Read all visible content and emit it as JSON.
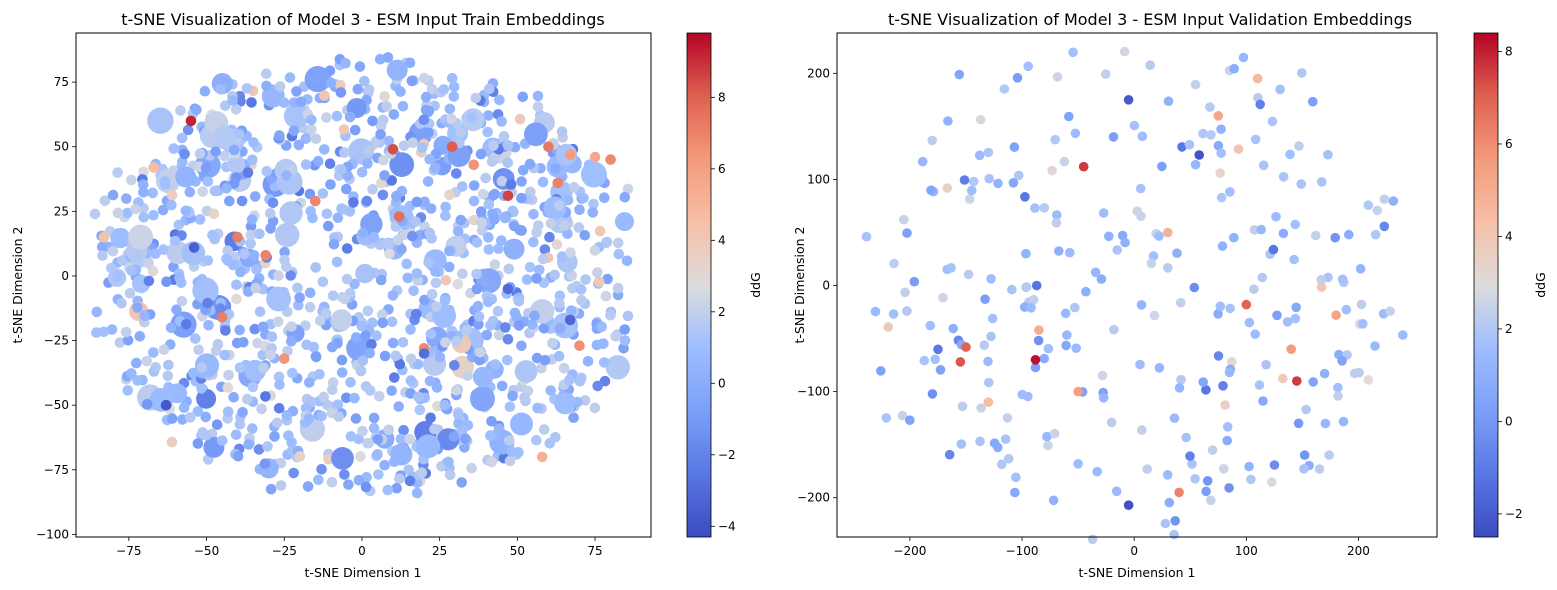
{
  "chart_data": [
    {
      "type": "scatter",
      "title": "t-SNE Visualization of Model 3 - ESM Input Train Embeddings",
      "xlabel": "t-SNE Dimension 1",
      "ylabel": "t-SNE Dimension 2",
      "xlim": [
        -92,
        93
      ],
      "ylim": [
        -101,
        94
      ],
      "xticks": [
        -75,
        -50,
        -25,
        0,
        25,
        50,
        75
      ],
      "yticks": [
        -100,
        -75,
        -50,
        -25,
        0,
        25,
        50,
        75
      ],
      "grid": false,
      "colorbar": {
        "label": "ddG",
        "range": [
          -4.3,
          9.8
        ],
        "ticks": [
          -4,
          -2,
          0,
          2,
          4,
          6,
          8
        ],
        "colormap": "coolwarm"
      },
      "highlight_points": [
        {
          "x": -55,
          "y": 60,
          "ddG": 9.2
        },
        {
          "x": 10,
          "y": 49,
          "ddG": 8.4
        },
        {
          "x": 12,
          "y": 23,
          "ddG": 7.6
        },
        {
          "x": 47,
          "y": 31,
          "ddG": 8.6
        },
        {
          "x": 29,
          "y": 50,
          "ddG": 8.1
        },
        {
          "x": 80,
          "y": 45,
          "ddG": 6.8
        },
        {
          "x": -40,
          "y": 15,
          "ddG": 7.2
        },
        {
          "x": -15,
          "y": 29,
          "ddG": 6.9
        },
        {
          "x": -31,
          "y": 8,
          "ddG": 7.0
        },
        {
          "x": 70,
          "y": -27,
          "ddG": 6.6
        },
        {
          "x": -25,
          "y": -32,
          "ddG": 6.4
        },
        {
          "x": 20,
          "y": -28,
          "ddG": 6.8
        },
        {
          "x": -45,
          "y": -16,
          "ddG": 7.1
        },
        {
          "x": 63,
          "y": 36,
          "ddG": 7.0
        },
        {
          "x": 36,
          "y": 43,
          "ddG": 6.5
        },
        {
          "x": 67,
          "y": 47,
          "ddG": 6.2
        },
        {
          "x": 75,
          "y": 46,
          "ddG": 5.6
        },
        {
          "x": 58,
          "y": -70,
          "ddG": 5.2
        },
        {
          "x": -83,
          "y": 15,
          "ddG": 4.4
        },
        {
          "x": -67,
          "y": 42,
          "ddG": 4.6
        },
        {
          "x": 60,
          "y": 50,
          "ddG": 7.3
        },
        {
          "x": -54,
          "y": 11,
          "ddG": -3.5
        },
        {
          "x": -63,
          "y": -50,
          "ddG": -3.8
        },
        {
          "x": 67,
          "y": -17,
          "ddG": -3.2
        },
        {
          "x": 20,
          "y": -30,
          "ddG": -2.9
        },
        {
          "x": 47,
          "y": -5,
          "ddG": -3.0
        }
      ]
    },
    {
      "type": "scatter",
      "title": "t-SNE Visualization of Model 3 - ESM Input Validation Embeddings",
      "xlabel": "t-SNE Dimension 1",
      "ylabel": "t-SNE Dimension 2",
      "xlim": [
        -265,
        270
      ],
      "ylim": [
        -237,
        238
      ],
      "xticks": [
        -200,
        -100,
        0,
        100,
        200
      ],
      "yticks": [
        -200,
        -100,
        0,
        100,
        200
      ],
      "grid": false,
      "colorbar": {
        "label": "ddG",
        "range": [
          -2.5,
          8.4
        ],
        "ticks": [
          -2,
          0,
          2,
          4,
          6,
          8
        ],
        "colormap": "coolwarm"
      },
      "highlight_points": [
        {
          "x": -45,
          "y": 112,
          "ddG": 7.6
        },
        {
          "x": -88,
          "y": -70,
          "ddG": 8.2
        },
        {
          "x": 145,
          "y": -90,
          "ddG": 7.6
        },
        {
          "x": 100,
          "y": -18,
          "ddG": 7.0
        },
        {
          "x": -155,
          "y": -72,
          "ddG": 7.2
        },
        {
          "x": -150,
          "y": -58,
          "ddG": 7.0
        },
        {
          "x": 40,
          "y": -195,
          "ddG": 6.2
        },
        {
          "x": 58,
          "y": 123,
          "ddG": -2.2
        },
        {
          "x": -5,
          "y": 175,
          "ddG": -2.0
        },
        {
          "x": -5,
          "y": -207,
          "ddG": -2.3
        },
        {
          "x": 140,
          "y": -60,
          "ddG": 5.6
        },
        {
          "x": 180,
          "y": -28,
          "ddG": 5.3
        },
        {
          "x": 110,
          "y": 195,
          "ddG": 4.6
        },
        {
          "x": -130,
          "y": -110,
          "ddG": 4.4
        },
        {
          "x": -50,
          "y": -100,
          "ddG": 5.5
        },
        {
          "x": -85,
          "y": -42,
          "ddG": 5.0
        },
        {
          "x": 30,
          "y": 50,
          "ddG": 4.8
        },
        {
          "x": 75,
          "y": 160,
          "ddG": 5.2
        }
      ]
    }
  ]
}
